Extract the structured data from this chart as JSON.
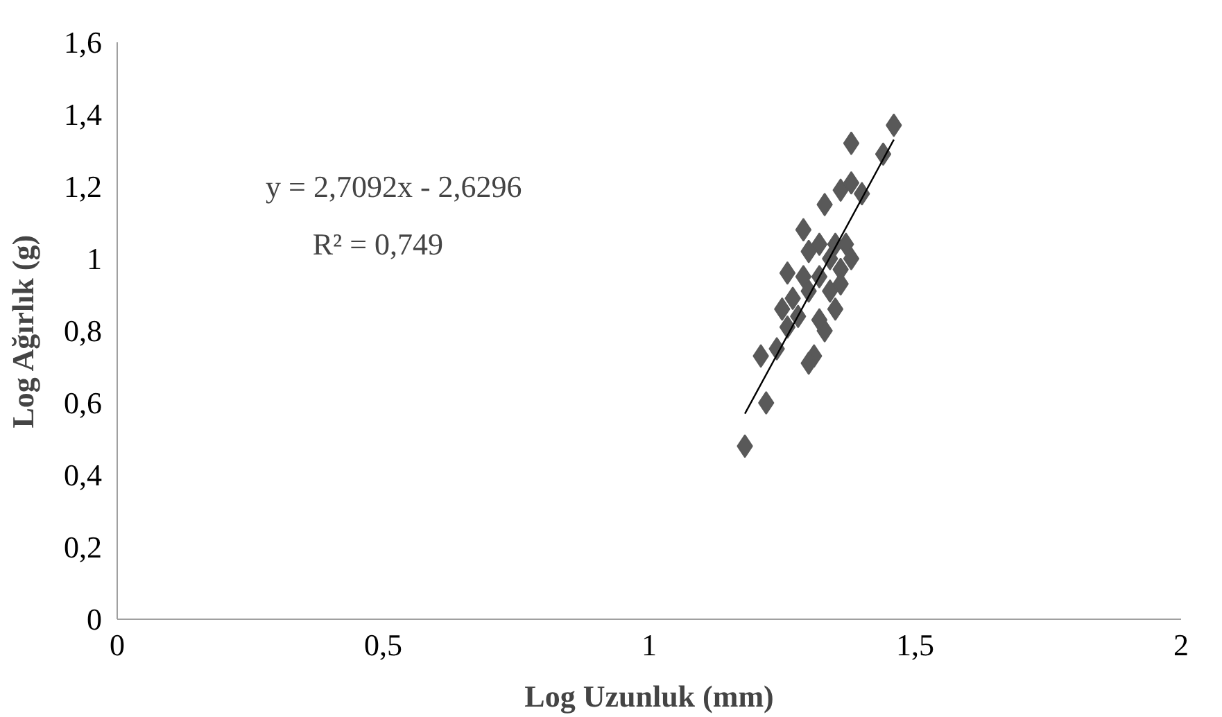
{
  "chart_data": {
    "type": "scatter",
    "xlabel": "Log Uzunluk (mm)",
    "ylabel": "Log Ağırlık (g)",
    "xlim": [
      0,
      2
    ],
    "ylim": [
      0,
      1.6
    ],
    "xticks": [
      0,
      {
        "value": 0.5,
        "label": "0,5"
      },
      1,
      {
        "value": 1.5,
        "label": "1,5"
      },
      2
    ],
    "yticks": [
      0,
      {
        "value": 0.2,
        "label": "0,2"
      },
      {
        "value": 0.4,
        "label": "0,4"
      },
      {
        "value": 0.6,
        "label": "0,6"
      },
      {
        "value": 0.8,
        "label": "0,8"
      },
      1,
      {
        "value": 1.2,
        "label": "1,2"
      },
      {
        "value": 1.4,
        "label": "1,4"
      },
      {
        "value": 1.6,
        "label": "1,6"
      }
    ],
    "grid": false,
    "annotations": [
      "y = 2,7092x - 2,6296",
      "R² = 0,749"
    ],
    "series": [
      {
        "marker": "diamond",
        "color": "#595959",
        "x": [
          1.18,
          1.22,
          1.21,
          1.24,
          1.26,
          1.25,
          1.29,
          1.26,
          1.27,
          1.3,
          1.31,
          1.3,
          1.33,
          1.32,
          1.35,
          1.34,
          1.35,
          1.36,
          1.38,
          1.34,
          1.29,
          1.33,
          1.36,
          1.38,
          1.4,
          1.38,
          1.44,
          1.46,
          1.32,
          1.3,
          1.32,
          1.28,
          1.36,
          1.37
        ],
        "values": [
          0.48,
          0.6,
          0.73,
          0.75,
          0.81,
          0.86,
          0.95,
          0.96,
          0.89,
          0.91,
          0.73,
          0.71,
          0.8,
          0.83,
          0.86,
          1.0,
          1.04,
          0.97,
          1.0,
          0.91,
          1.08,
          1.15,
          1.19,
          1.21,
          1.18,
          1.32,
          1.29,
          1.37,
          0.95,
          1.02,
          1.04,
          0.84,
          0.93,
          1.04
        ]
      },
      {
        "type": "line",
        "color": "#000000",
        "line_style": "solid",
        "x": [
          1.18,
          1.46
        ],
        "values": [
          0.57,
          1.33
        ]
      }
    ]
  }
}
